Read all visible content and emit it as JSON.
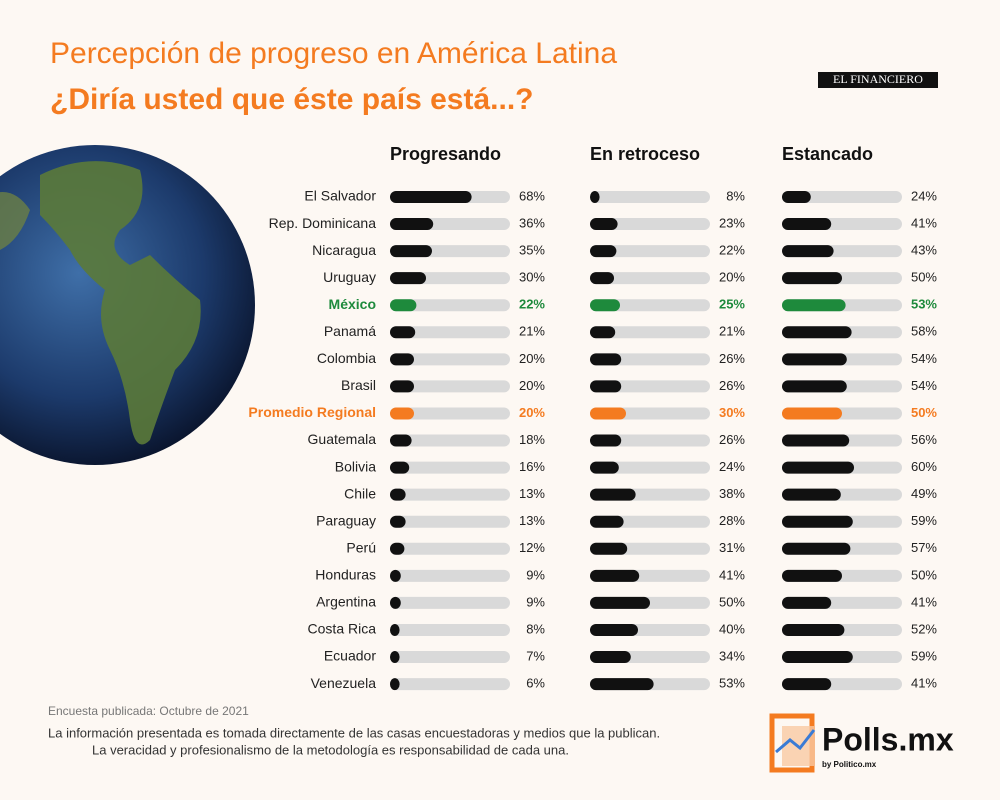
{
  "chart_data": {
    "type": "bar",
    "title": "Percepción de progreso en América Latina",
    "subtitle": "¿Diría usted que éste país está...?",
    "categories": [
      "El Salvador",
      "Rep. Dominicana",
      "Nicaragua",
      "Uruguay",
      "México",
      "Panamá",
      "Colombia",
      "Brasil",
      "Promedio Regional",
      "Guatemala",
      "Bolivia",
      "Chile",
      "Paraguay",
      "Perú",
      "Honduras",
      "Argentina",
      "Costa Rica",
      "Ecuador",
      "Venezuela"
    ],
    "category_colors": [
      "#111111",
      "#111111",
      "#111111",
      "#111111",
      "#1e8a3c",
      "#111111",
      "#111111",
      "#111111",
      "#f47b20",
      "#111111",
      "#111111",
      "#111111",
      "#111111",
      "#111111",
      "#111111",
      "#111111",
      "#111111",
      "#111111",
      "#111111"
    ],
    "track_color": "#d9d9d9",
    "xlim": [
      0,
      100
    ],
    "series": [
      {
        "name": "Progresando",
        "values": [
          68,
          36,
          35,
          30,
          22,
          21,
          20,
          20,
          20,
          18,
          16,
          13,
          13,
          12,
          9,
          9,
          8,
          7,
          6
        ],
        "value_labels": [
          "68%",
          "36%",
          "35%",
          "30%",
          "22%",
          "21%",
          "20%",
          "20%",
          "20%",
          "18%",
          "16%",
          "13%",
          "13%",
          "12%",
          "9%",
          "9%",
          "8%",
          "7%",
          "6%"
        ]
      },
      {
        "name": "En retroceso",
        "values": [
          8,
          23,
          22,
          20,
          25,
          21,
          26,
          26,
          30,
          26,
          24,
          38,
          28,
          31,
          41,
          50,
          40,
          34,
          53
        ],
        "value_labels": [
          "8%",
          "23%",
          "22%",
          "20%",
          "25%",
          "21%",
          "26%",
          "26%",
          "30%",
          "26%",
          "24%",
          "38%",
          "28%",
          "31%",
          "41%",
          "50%",
          "40%",
          "34%",
          "53%"
        ]
      },
      {
        "name": "Estancado",
        "values": [
          24,
          41,
          43,
          50,
          53,
          58,
          54,
          54,
          50,
          56,
          60,
          49,
          59,
          57,
          50,
          41,
          52,
          59,
          41
        ],
        "value_labels": [
          "24%",
          "41%",
          "43%",
          "50%",
          "53%",
          "58%",
          "54%",
          "54%",
          "50%",
          "56%",
          "60%",
          "49%",
          "59%",
          "57%",
          "50%",
          "41%",
          "52%",
          "59%",
          "41%"
        ]
      }
    ]
  },
  "source": "Encuesta publicada: Octubre de 2021",
  "disclaimer": [
    "La información presentada es tomada directamente de las casas encuestadoras y medios que la publican.",
    "La veracidad y profesionalismo de la metodología es responsabilidad de cada una."
  ],
  "branding": {
    "partner": "EL FINANCIERO",
    "logo": "Polls.mx",
    "logo_sub": "by Politico.mx"
  }
}
